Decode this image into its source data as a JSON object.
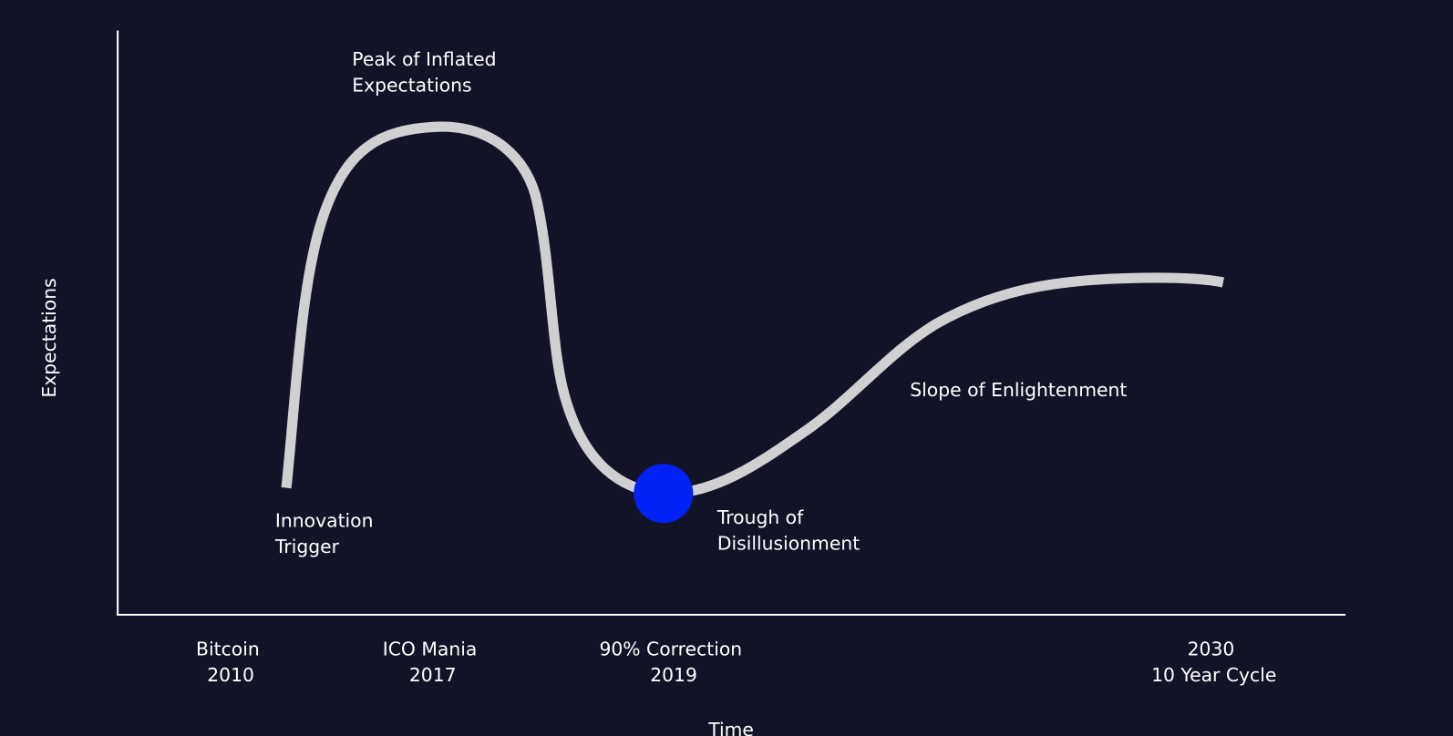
{
  "axes": {
    "y_label": "Expectations",
    "x_label": "Time"
  },
  "phases": [
    {
      "lines": [
        "Innovation",
        "Trigger"
      ]
    },
    {
      "lines": [
        "Peak of Inflated",
        "Expectations"
      ]
    },
    {
      "lines": [
        "Trough of",
        "Disillusionment"
      ]
    },
    {
      "lines": [
        "Slope of Enlightenment"
      ]
    }
  ],
  "milestones": [
    {
      "lines": [
        "Bitcoin",
        "2010"
      ]
    },
    {
      "lines": [
        "ICO Mania",
        "2017"
      ]
    },
    {
      "lines": [
        "90% Correction",
        "2019"
      ]
    },
    {
      "lines": [
        "2030",
        "10 Year Cycle"
      ]
    }
  ]
}
